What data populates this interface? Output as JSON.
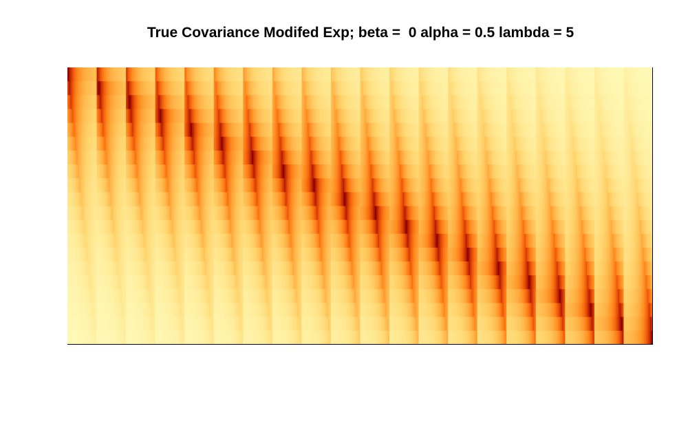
{
  "chart_data": {
    "type": "heatmap",
    "title": "True Covariance Modifed Exp; beta =  0 alpha = 0.5 lambda = 5",
    "xlabel": "",
    "ylabel": "",
    "axes_drawn": false,
    "grid": false,
    "legend": "none",
    "colormap": "heat.colors (dark red = high, light yellow = low)",
    "colors": [
      "#fffec4",
      "#ffed9c",
      "#ffd670",
      "#ffb347",
      "#ff8a1f",
      "#f05a0a",
      "#c42a00",
      "#8b0000"
    ],
    "structure": {
      "blocks": 20,
      "values_per_block": 20,
      "diagonal_value": 1.0,
      "off_diagonal_min": 0.0
    }
  }
}
